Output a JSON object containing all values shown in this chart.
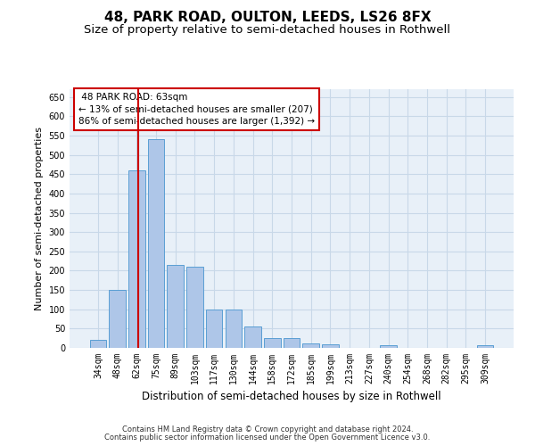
{
  "title": "48, PARK ROAD, OULTON, LEEDS, LS26 8FX",
  "subtitle": "Size of property relative to semi-detached houses in Rothwell",
  "xlabel": "Distribution of semi-detached houses by size in Rothwell",
  "ylabel": "Number of semi-detached properties",
  "footer_line1": "Contains HM Land Registry data © Crown copyright and database right 2024.",
  "footer_line2": "Contains public sector information licensed under the Open Government Licence v3.0.",
  "categories": [
    "34sqm",
    "48sqm",
    "62sqm",
    "75sqm",
    "89sqm",
    "103sqm",
    "117sqm",
    "130sqm",
    "144sqm",
    "158sqm",
    "172sqm",
    "185sqm",
    "199sqm",
    "213sqm",
    "227sqm",
    "240sqm",
    "254sqm",
    "268sqm",
    "282sqm",
    "295sqm",
    "309sqm"
  ],
  "values": [
    20,
    150,
    460,
    540,
    215,
    210,
    100,
    100,
    55,
    25,
    25,
    12,
    10,
    0,
    0,
    8,
    0,
    0,
    0,
    0,
    8
  ],
  "bar_color": "#aec6e8",
  "bar_edge_color": "#5a9fd4",
  "vline_color": "#cc0000",
  "vline_x_index": 2.07,
  "annotation_box_color": "#cc0000",
  "property_size_label": "48 PARK ROAD: 63sqm",
  "smaller_pct": 13,
  "smaller_count": 207,
  "larger_pct": 86,
  "larger_count": 1392,
  "ylim": [
    0,
    670
  ],
  "yticks": [
    0,
    50,
    100,
    150,
    200,
    250,
    300,
    350,
    400,
    450,
    500,
    550,
    600,
    650
  ],
  "grid_color": "#c8d8e8",
  "bg_color": "#e8f0f8",
  "title_fontsize": 11,
  "subtitle_fontsize": 9.5,
  "tick_fontsize": 7,
  "ylabel_fontsize": 8,
  "xlabel_fontsize": 8.5,
  "footer_fontsize": 6,
  "ann_fontsize": 7.5
}
